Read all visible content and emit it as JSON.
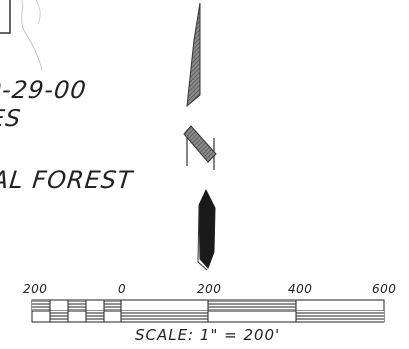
{
  "notes": {
    "line1": "0-29-00",
    "line2": "ES",
    "line3": "AL FOREST"
  },
  "scale_bar": {
    "tick_labels": [
      "200",
      "0",
      "200",
      "400",
      "600"
    ],
    "caption": "SCALE:  1\"  =  200'"
  },
  "colors": {
    "ink": "#222222",
    "hatch": "#6e6e6e"
  },
  "icons": {
    "north_arrow": "north-arrow-icon"
  }
}
